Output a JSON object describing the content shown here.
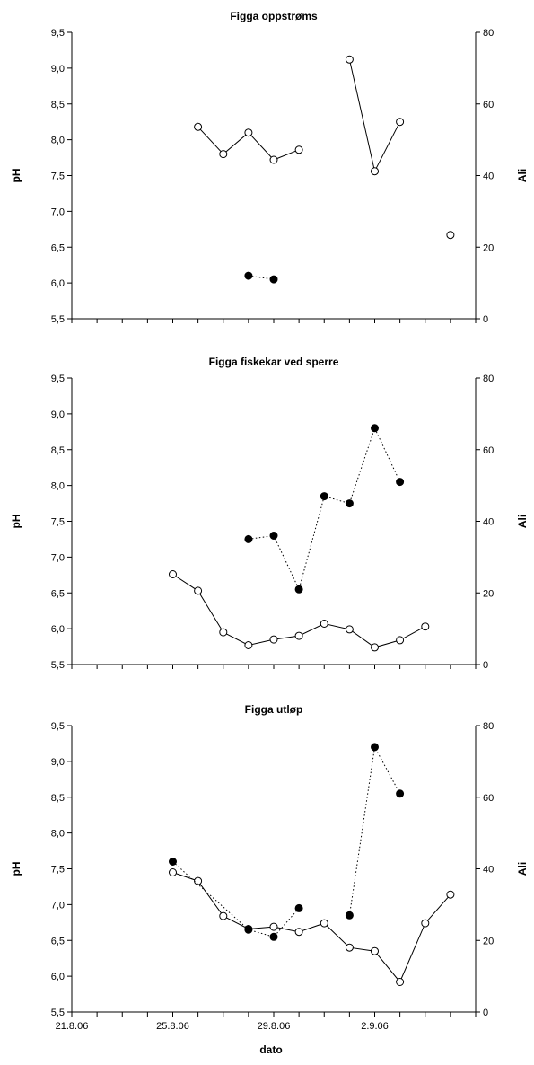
{
  "xlabel": "dato",
  "x_tick_labels": [
    "21.8.06",
    "25.8.06",
    "29.8.06",
    "2.9.06"
  ],
  "chart_data": [
    {
      "type": "line",
      "title": "Figga oppstrøms",
      "ylabel": "pH",
      "y2label": "Ali",
      "ylim": [
        5.5,
        9.5
      ],
      "y2lim": [
        0,
        80
      ],
      "y_ticks": [
        "5,5",
        "6,0",
        "6,5",
        "7,0",
        "7,5",
        "8,0",
        "8,5",
        "9,0",
        "9,5"
      ],
      "y2_ticks": [
        "0",
        "20",
        "40",
        "60",
        "80"
      ],
      "series": [
        {
          "axis": "left",
          "marker": "open",
          "line": "solid",
          "segments": [
            [
              [
                "2006-08-26",
                8.18
              ],
              [
                "2006-08-27",
                7.8
              ],
              [
                "2006-08-28",
                8.1
              ],
              [
                "2006-08-29",
                7.72
              ],
              [
                "2006-08-30",
                7.86
              ]
            ],
            [
              [
                "2006-09-01",
                9.12
              ],
              [
                "2006-09-02",
                7.56
              ],
              [
                "2006-09-03",
                8.25
              ]
            ],
            [
              [
                "2006-09-05",
                6.67
              ]
            ]
          ]
        },
        {
          "axis": "right",
          "marker": "filled",
          "line": "dotted",
          "segments": [
            [
              [
                "2006-08-28",
                12
              ],
              [
                "2006-08-29",
                11
              ]
            ]
          ]
        }
      ]
    },
    {
      "type": "line",
      "title": "Figga fiskekar ved sperre",
      "ylabel": "pH",
      "y2label": "Ali",
      "ylim": [
        5.5,
        9.5
      ],
      "y2lim": [
        0,
        80
      ],
      "y_ticks": [
        "5,5",
        "6,0",
        "6,5",
        "7,0",
        "7,5",
        "8,0",
        "8,5",
        "9,0",
        "9,5"
      ],
      "y2_ticks": [
        "0",
        "20",
        "40",
        "60",
        "80"
      ],
      "series": [
        {
          "axis": "left",
          "marker": "open",
          "line": "solid",
          "segments": [
            [
              [
                "2006-08-25",
                6.76
              ],
              [
                "2006-08-26",
                6.53
              ],
              [
                "2006-08-27",
                5.95
              ],
              [
                "2006-08-28",
                5.77
              ],
              [
                "2006-08-29",
                5.85
              ],
              [
                "2006-08-30",
                5.9
              ],
              [
                "2006-08-31",
                6.07
              ],
              [
                "2006-09-01",
                5.99
              ],
              [
                "2006-09-02",
                5.74
              ],
              [
                "2006-09-03",
                5.84
              ],
              [
                "2006-09-04",
                6.03
              ]
            ]
          ]
        },
        {
          "axis": "right",
          "marker": "filled",
          "line": "dotted",
          "segments": [
            [
              [
                "2006-08-28",
                35
              ],
              [
                "2006-08-29",
                36
              ],
              [
                "2006-08-30",
                21
              ],
              [
                "2006-08-31",
                47
              ],
              [
                "2006-09-01",
                45
              ],
              [
                "2006-09-02",
                66
              ],
              [
                "2006-09-03",
                51
              ]
            ]
          ]
        }
      ]
    },
    {
      "type": "line",
      "title": "Figga utløp",
      "ylabel": "pH",
      "y2label": "Ali",
      "ylim": [
        5.5,
        9.5
      ],
      "y2lim": [
        0,
        80
      ],
      "y_ticks": [
        "5,5",
        "6,0",
        "6,5",
        "7,0",
        "7,5",
        "8,0",
        "8,5",
        "9,0",
        "9,5"
      ],
      "y2_ticks": [
        "0",
        "20",
        "40",
        "60",
        "80"
      ],
      "series": [
        {
          "axis": "left",
          "marker": "open",
          "line": "solid",
          "segments": [
            [
              [
                "2006-08-25",
                7.45
              ],
              [
                "2006-08-26",
                7.33
              ],
              [
                "2006-08-27",
                6.84
              ],
              [
                "2006-08-28",
                6.66
              ],
              [
                "2006-08-29",
                6.69
              ],
              [
                "2006-08-30",
                6.62
              ],
              [
                "2006-08-31",
                6.74
              ],
              [
                "2006-09-01",
                6.4
              ],
              [
                "2006-09-02",
                6.35
              ],
              [
                "2006-09-03",
                5.92
              ],
              [
                "2006-09-04",
                6.74
              ],
              [
                "2006-09-05",
                7.14
              ]
            ]
          ]
        },
        {
          "axis": "right",
          "marker": "filled",
          "line": "dotted",
          "segments": [
            [
              [
                "2006-08-25",
                42
              ],
              [
                "2006-08-28",
                23
              ],
              [
                "2006-08-29",
                21
              ],
              [
                "2006-08-30",
                29
              ]
            ],
            [
              [
                "2006-09-01",
                27
              ],
              [
                "2006-09-02",
                74
              ],
              [
                "2006-09-03",
                61
              ]
            ]
          ]
        }
      ]
    }
  ]
}
